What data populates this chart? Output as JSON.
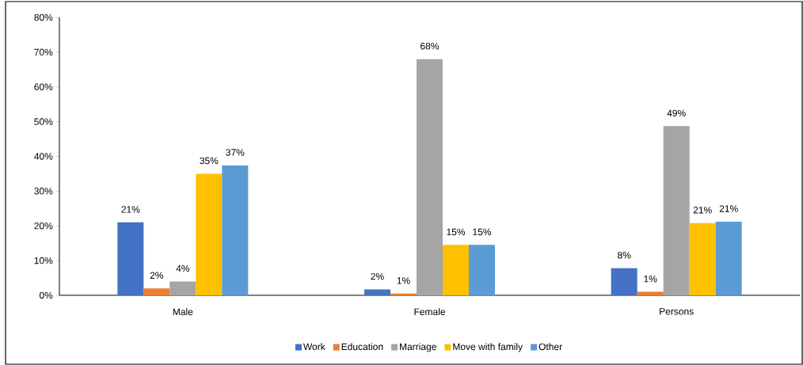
{
  "chart_data": {
    "type": "bar",
    "categories": [
      "Male",
      "Female",
      "Persons"
    ],
    "series": [
      {
        "name": "Work",
        "color": "#4472c4",
        "values": [
          21,
          1.7,
          7.8
        ],
        "value_labels": [
          "21%",
          "2%",
          "8%"
        ]
      },
      {
        "name": "Education",
        "color": "#ed7d31",
        "values": [
          2,
          0.5,
          1
        ],
        "value_labels": [
          "2%",
          "1%",
          "1%"
        ]
      },
      {
        "name": "Marriage",
        "color": "#a5a5a5",
        "values": [
          4,
          68,
          48.7
        ],
        "value_labels": [
          "4%",
          "68%",
          "49%"
        ]
      },
      {
        "name": "Move with family",
        "color": "#ffc000",
        "values": [
          35,
          14.5,
          20.8
        ],
        "value_labels": [
          "35%",
          "15%",
          "21%"
        ]
      },
      {
        "name": "Other",
        "color": "#5b9bd5",
        "values": [
          37.4,
          14.5,
          21.2
        ],
        "value_labels": [
          "37%",
          "15%",
          "21%"
        ]
      }
    ],
    "ylim": [
      0,
      80
    ],
    "yticks": [
      {
        "value": 0,
        "label": "0%"
      },
      {
        "value": 10,
        "label": "10%"
      },
      {
        "value": 20,
        "label": "20%"
      },
      {
        "value": 30,
        "label": "30%"
      },
      {
        "value": 40,
        "label": "40%"
      },
      {
        "value": 50,
        "label": "50%"
      },
      {
        "value": 60,
        "label": "60%"
      },
      {
        "value": 70,
        "label": "70%"
      },
      {
        "value": 80,
        "label": "80%"
      }
    ],
    "grid": false,
    "legend": "bottom"
  }
}
